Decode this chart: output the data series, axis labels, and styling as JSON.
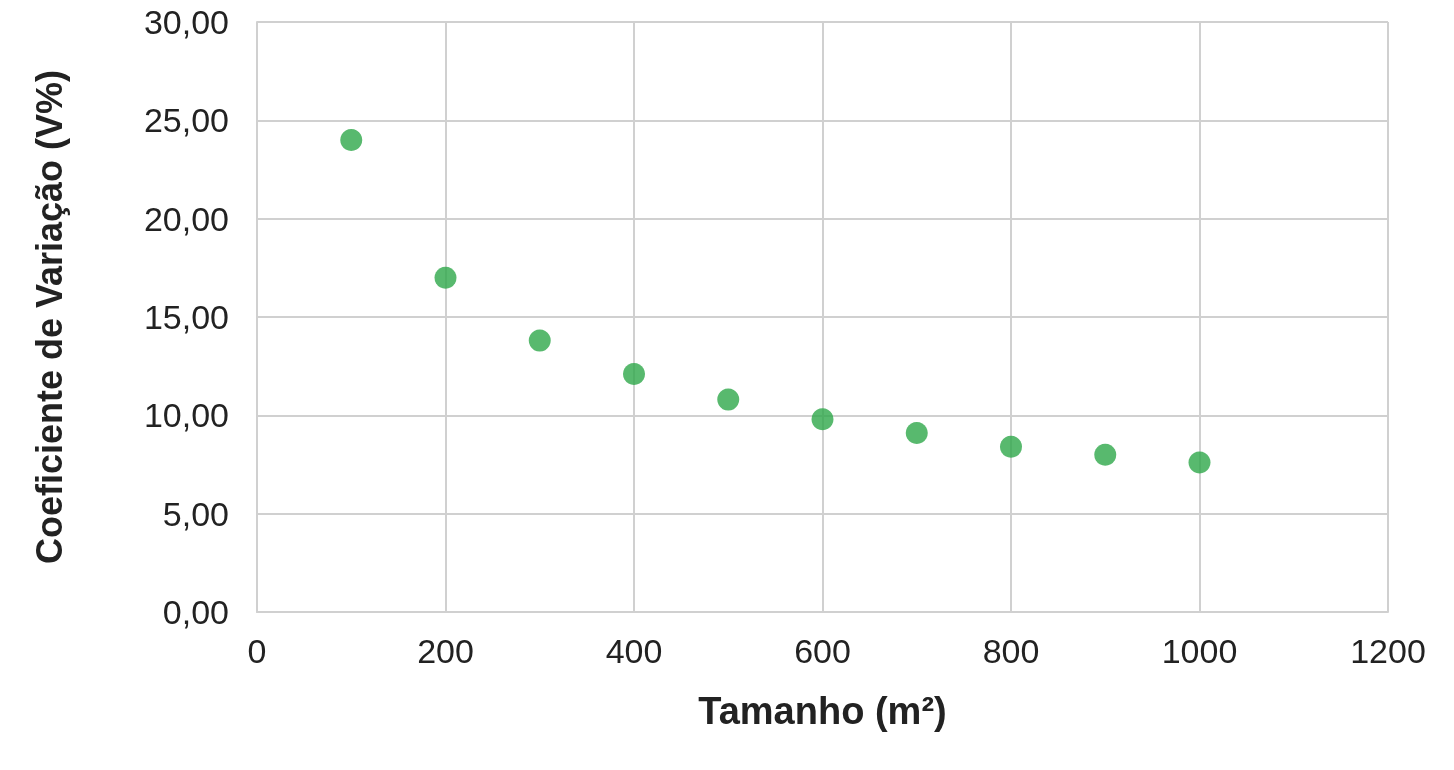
{
  "chart_data": {
    "type": "scatter",
    "xlabel": "Tamanho (m²)",
    "ylabel": "Coeficiente de Variação (V%)",
    "x": [
      100,
      200,
      300,
      400,
      500,
      600,
      700,
      800,
      900,
      1000
    ],
    "series": [
      {
        "color": "#2ea84a",
        "values": [
          24.0,
          17.0,
          13.8,
          12.1,
          10.8,
          9.8,
          9.1,
          8.4,
          8.0,
          7.6
        ]
      }
    ],
    "xlim": [
      0,
      1200
    ],
    "xticks": [
      0,
      200,
      400,
      600,
      800,
      1000,
      1200
    ],
    "ylim": [
      0,
      30
    ],
    "yticks": [
      {
        "value": 0,
        "label": "0,00"
      },
      {
        "value": 5,
        "label": "5,00"
      },
      {
        "value": 10,
        "label": "10,00"
      },
      {
        "value": 15,
        "label": "15,00"
      },
      {
        "value": 20,
        "label": "20,00"
      },
      {
        "value": 25,
        "label": "25,00"
      },
      {
        "value": 30,
        "label": "30,00"
      }
    ],
    "grid": true,
    "marker": "circle"
  }
}
